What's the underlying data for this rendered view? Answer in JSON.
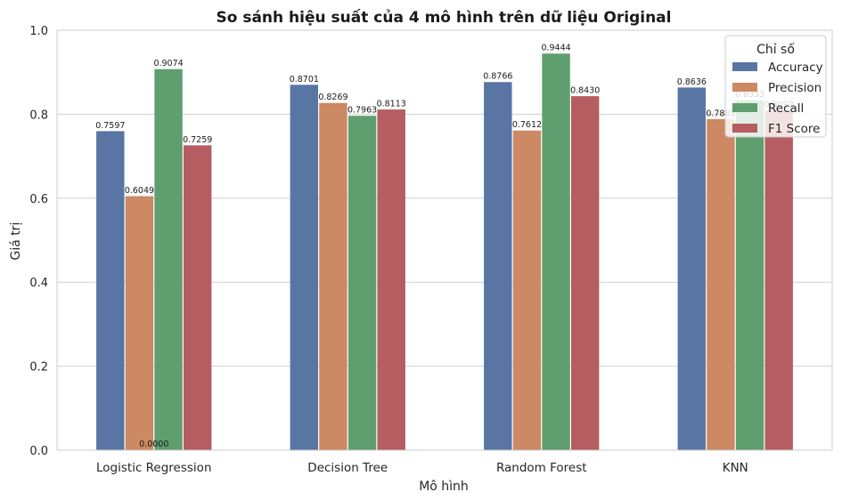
{
  "chart_data": {
    "type": "bar",
    "title": "So sánh hiệu suất của 4 mô hình trên dữ liệu Original",
    "xlabel": "Mô hình",
    "ylabel": "Giá trị",
    "ylim": [
      0,
      1.0
    ],
    "yticks": [
      "0.0",
      "0.2",
      "0.4",
      "0.6",
      "0.8",
      "1.0"
    ],
    "grid": "horizontal",
    "categories": [
      "Logistic Regression",
      "Decision Tree",
      "Random Forest",
      "KNN"
    ],
    "series": [
      {
        "name": "Accuracy",
        "color": "#5875a4",
        "values": [
          0.7597,
          0.8701,
          0.8766,
          0.8636
        ],
        "labels": [
          "0.7597",
          "0.8701",
          "0.8766",
          "0.8636"
        ]
      },
      {
        "name": "Precision",
        "color": "#cc8963",
        "values": [
          0.6049,
          0.8269,
          0.7612,
          0.7885
        ],
        "labels": [
          "0.6049",
          "0.8269",
          "0.7612",
          "0.7885"
        ]
      },
      {
        "name": "Recall",
        "color": "#5f9e6e",
        "values": [
          0.9074,
          0.7963,
          0.9444,
          0.8333
        ],
        "labels": [
          "0.9074",
          "0.7963",
          "0.9444",
          "0.8333"
        ]
      },
      {
        "name": "F1 Score",
        "color": "#b55d60",
        "values": [
          0.7259,
          0.8113,
          0.843,
          0.8092
        ],
        "labels": [
          "0.7259",
          "0.8113",
          "0.8430",
          "0.8092"
        ]
      }
    ],
    "stray_label": "0.0000",
    "legend": {
      "title": "Chỉ số",
      "placement": "top-right"
    }
  }
}
